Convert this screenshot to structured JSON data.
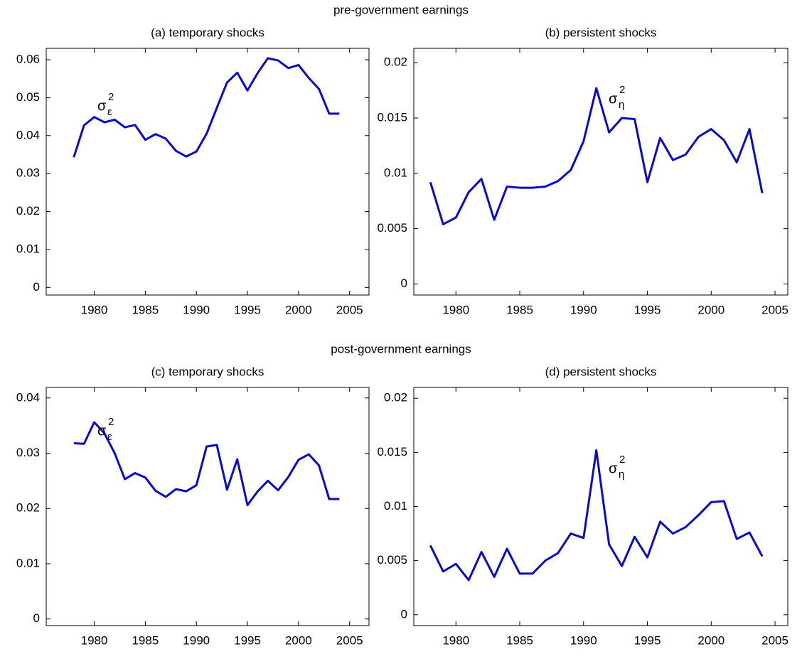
{
  "headings": [
    "pre-government earnings",
    "post-government earnings"
  ],
  "chart_data": [
    {
      "type": "line",
      "title": "(a) temporary shocks",
      "annotation": {
        "text": "σ",
        "sub": "ε",
        "sup": "2"
      },
      "x": [
        1978,
        1979,
        1980,
        1981,
        1982,
        1983,
        1984,
        1985,
        1986,
        1987,
        1988,
        1989,
        1990,
        1991,
        1992,
        1993,
        1994,
        1995,
        1996,
        1997,
        1998,
        1999,
        2000,
        2001,
        2002,
        2003,
        2004
      ],
      "series": [
        {
          "color": "#0a0ac8",
          "values": [
            0.0343,
            0.0427,
            0.0449,
            0.0435,
            0.0442,
            0.0422,
            0.0428,
            0.0389,
            0.0404,
            0.0392,
            0.036,
            0.0345,
            0.0358,
            0.0405,
            0.0473,
            0.054,
            0.0566,
            0.0519,
            0.0565,
            0.0604,
            0.0598,
            0.0578,
            0.0586,
            0.0552,
            0.0523,
            0.0458,
            0.0458
          ]
        }
      ],
      "xlim": [
        1975.3,
        2006.9
      ],
      "xticks": [
        1980,
        1985,
        1990,
        1995,
        2000,
        2005
      ],
      "ylim": [
        -0.002,
        0.063
      ],
      "yticks": [
        0,
        0.01,
        0.02,
        0.03,
        0.04,
        0.05,
        0.06
      ]
    },
    {
      "type": "line",
      "title": "(b) persistent shocks",
      "annotation": {
        "text": "σ",
        "sub": "η",
        "sup": "2"
      },
      "x": [
        1978,
        1979,
        1980,
        1981,
        1982,
        1983,
        1984,
        1985,
        1986,
        1987,
        1988,
        1989,
        1990,
        1991,
        1992,
        1993,
        1994,
        1995,
        1996,
        1997,
        1998,
        1999,
        2000,
        2001,
        2002,
        2003,
        2004
      ],
      "series": [
        {
          "color": "#0a0ac8",
          "values": [
            0.0092,
            0.0054,
            0.006,
            0.0083,
            0.0095,
            0.0058,
            0.0088,
            0.0087,
            0.0087,
            0.0088,
            0.0093,
            0.0103,
            0.0129,
            0.0177,
            0.0137,
            0.015,
            0.0149,
            0.0092,
            0.0132,
            0.0112,
            0.0117,
            0.0133,
            0.014,
            0.013,
            0.011,
            0.014,
            0.0082
          ]
        }
      ],
      "xlim": [
        1976.7,
        2006.0
      ],
      "xticks": [
        1980,
        1985,
        1990,
        1995,
        2000,
        2005
      ],
      "ylim": [
        -0.001,
        0.0213
      ],
      "yticks": [
        0,
        0.005,
        0.01,
        0.015,
        0.02
      ]
    },
    {
      "type": "line",
      "title": "(c) temporary shocks",
      "annotation": {
        "text": "σ",
        "sub": "ε",
        "sup": "2"
      },
      "x": [
        1978,
        1979,
        1980,
        1981,
        1982,
        1983,
        1984,
        1985,
        1986,
        1987,
        1988,
        1989,
        1990,
        1991,
        1992,
        1993,
        1994,
        1995,
        1996,
        1997,
        1998,
        1999,
        2000,
        2001,
        2002,
        2003,
        2004
      ],
      "series": [
        {
          "color": "#0a0ac8",
          "values": [
            0.0318,
            0.0317,
            0.0356,
            0.0336,
            0.03,
            0.0253,
            0.0264,
            0.0256,
            0.0232,
            0.0221,
            0.0235,
            0.0231,
            0.0242,
            0.0312,
            0.0315,
            0.0234,
            0.0289,
            0.0206,
            0.0231,
            0.025,
            0.0233,
            0.0257,
            0.0288,
            0.0298,
            0.0278,
            0.0217,
            0.0217
          ]
        }
      ],
      "xlim": [
        1975.3,
        2006.9
      ],
      "xticks": [
        1980,
        1985,
        1990,
        1995,
        2000,
        2005
      ],
      "ylim": [
        -0.0012,
        0.0419
      ],
      "yticks": [
        0,
        0.01,
        0.02,
        0.03,
        0.04
      ]
    },
    {
      "type": "line",
      "title": "(d) persistent shocks",
      "annotation": {
        "text": "σ",
        "sub": "η",
        "sup": "2"
      },
      "x": [
        1978,
        1979,
        1980,
        1981,
        1982,
        1983,
        1984,
        1985,
        1986,
        1987,
        1988,
        1989,
        1990,
        1991,
        1992,
        1993,
        1994,
        1995,
        1996,
        1997,
        1998,
        1999,
        2000,
        2001,
        2002,
        2003,
        2004
      ],
      "series": [
        {
          "color": "#0a0ac8",
          "values": [
            0.0064,
            0.004,
            0.0047,
            0.0032,
            0.0058,
            0.0035,
            0.0061,
            0.0038,
            0.0038,
            0.005,
            0.0057,
            0.0075,
            0.0071,
            0.0152,
            0.0065,
            0.0045,
            0.0072,
            0.0053,
            0.0086,
            0.0075,
            0.0081,
            0.0092,
            0.0104,
            0.0105,
            0.007,
            0.0076,
            0.0054
          ]
        }
      ],
      "xlim": [
        1976.7,
        2006.0
      ],
      "xticks": [
        1980,
        1985,
        1990,
        1995,
        2000,
        2005
      ],
      "ylim": [
        -0.001,
        0.021
      ],
      "yticks": [
        0,
        0.005,
        0.01,
        0.015,
        0.02
      ]
    }
  ]
}
